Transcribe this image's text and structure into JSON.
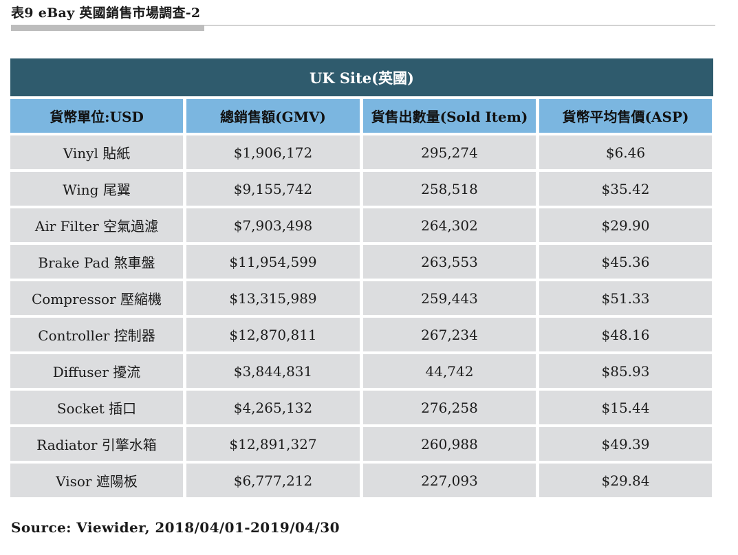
{
  "caption": "表9 eBay 英國銷售市場調查-2",
  "table": {
    "site_title": "UK Site(英國)",
    "headers": [
      "貨幣單位:USD",
      "總銷售額(GMV)",
      "貨售出數量(Sold Item)",
      "貨幣平均售價(ASP)"
    ],
    "rows": [
      [
        "Vinyl 貼紙",
        "$1,906,172",
        "295,274",
        "$6.46"
      ],
      [
        "Wing 尾翼",
        "$9,155,742",
        "258,518",
        "$35.42"
      ],
      [
        "Air Filter 空氣過濾",
        "$7,903,498",
        "264,302",
        "$29.90"
      ],
      [
        "Brake Pad  煞車盤",
        "$11,954,599",
        "263,553",
        "$45.36"
      ],
      [
        "Compressor 壓縮機",
        "$13,315,989",
        "259,443",
        "$51.33"
      ],
      [
        "Controller 控制器",
        "$12,870,811",
        "267,234",
        "$48.16"
      ],
      [
        "Diffuser 擾流",
        "$3,844,831",
        "44,742",
        "$85.93"
      ],
      [
        "Socket 插口",
        "$4,265,132",
        "276,258",
        "$15.44"
      ],
      [
        "Radiator 引擎水箱",
        "$12,891,327",
        "260,988",
        "$49.39"
      ],
      [
        "Visor 遮陽板",
        "$6,777,212",
        "227,093",
        "$29.84"
      ]
    ]
  },
  "source": "Source: Viewider, 2018/04/01-2019/04/30",
  "colors": {
    "site_header_bg": "#2f5b6d",
    "column_header_bg": "#7bb6e0",
    "row_bg": "#dcdddf"
  }
}
